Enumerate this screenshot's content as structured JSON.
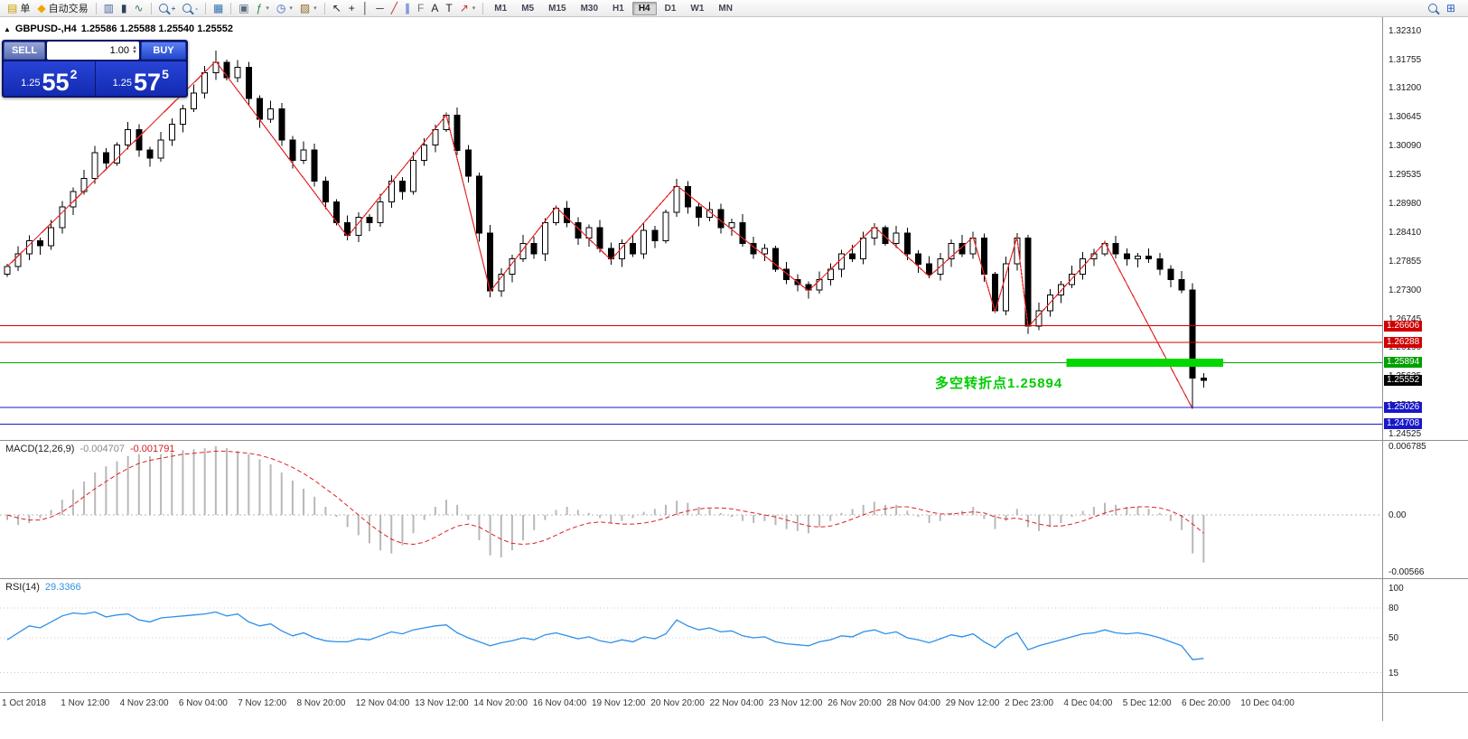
{
  "header": {
    "collapse_icon": "▲",
    "symbol": "GBPUSD-,H4",
    "ohlc": "1.25586 1.25588 1.25540 1.25552"
  },
  "trade_panel": {
    "sell_label": "SELL",
    "buy_label": "BUY",
    "volume": "1.00",
    "sell_price_prefix": "1.25",
    "sell_price_big": "55",
    "sell_price_sup": "2",
    "buy_price_prefix": "1.25",
    "buy_price_big": "57",
    "buy_price_sup": "5"
  },
  "toolbar": {
    "groups": [
      {
        "items": [
          {
            "name": "new-order-button",
            "glyph": "▤",
            "glyph_color": "#c89b00",
            "label": "单"
          },
          {
            "name": "autotrading-button",
            "glyph": "◆",
            "glyph_color": "#f0a500",
            "label": "自动交易"
          }
        ]
      },
      {
        "items": [
          {
            "name": "bar-chart-button",
            "glyph": "▥",
            "glyph_color": "#49679c"
          },
          {
            "name": "candlestick-chart-button",
            "glyph": "▮",
            "glyph_color": "#30405c"
          },
          {
            "name": "line-chart-button",
            "glyph": "∿",
            "glyph_color": "#2f8050"
          }
        ]
      },
      {
        "items": [
          {
            "name": "zoom-in-button",
            "kind": "mag",
            "sign": "+"
          },
          {
            "name": "zoom-out-button",
            "kind": "mag",
            "sign": "-"
          }
        ]
      },
      {
        "items": [
          {
            "name": "tile-windows-button",
            "glyph": "▦",
            "glyph_color": "#2e6fae"
          }
        ]
      },
      {
        "items": [
          {
            "name": "cascade-windows-button",
            "glyph": "▣",
            "glyph_color": "#5a6b7c"
          },
          {
            "name": "indicators-button",
            "glyph": "ƒ",
            "glyph_color": "#1c8a3c",
            "arrow": true
          },
          {
            "name": "periods-button",
            "glyph": "◷",
            "glyph_color": "#2a62c0",
            "arrow": true
          },
          {
            "name": "templates-button",
            "glyph": "▨",
            "glyph_color": "#8a6a2a",
            "arrow": true
          }
        ]
      },
      {
        "items": [
          {
            "name": "cursor-button",
            "glyph": "↖",
            "glyph_color": "#222222"
          },
          {
            "name": "crosshair-button",
            "glyph": "+",
            "glyph_color": "#222222"
          },
          {
            "name": "vertical-line-button",
            "glyph": "│",
            "glyph_color": "#333333"
          },
          {
            "name": "horizontal-line-button",
            "glyph": "─",
            "glyph_color": "#333333"
          },
          {
            "name": "trendline-button",
            "glyph": "╱",
            "glyph_color": "#c03030"
          },
          {
            "name": "equidistant-channel-button",
            "glyph": "∥",
            "glyph_color": "#2a52c0"
          },
          {
            "name": "fibonacci-button",
            "glyph": "F",
            "glyph_color": "#777777"
          },
          {
            "name": "text-button",
            "glyph": "A",
            "glyph_color": "#222222"
          },
          {
            "name": "text-label-button",
            "glyph": "T",
            "glyph_color": "#222222"
          },
          {
            "name": "arrows-button",
            "glyph": "↗",
            "glyph_color": "#c03030",
            "arrow": true
          }
        ]
      }
    ],
    "timeframes": [
      "M1",
      "M5",
      "M15",
      "M30",
      "H1",
      "H4",
      "D1",
      "W1",
      "MN"
    ],
    "active_timeframe": "H4",
    "right_items": [
      {
        "name": "search-button",
        "kind": "mag"
      },
      {
        "name": "new-chart-button",
        "glyph": "⊞",
        "glyph_color": "#2a62c0"
      }
    ]
  },
  "chart_data": {
    "type": "candlestick",
    "symbol": "GBPUSD-",
    "timeframe": "H4",
    "title": "GBPUSD-,H4",
    "current_ohlc": {
      "open": 1.25586,
      "high": 1.25588,
      "low": 1.2554,
      "close": 1.25552
    },
    "current_price": 1.25552,
    "current_price_label": "1.25552",
    "price_top": 1.3257,
    "price_bottom": 1.244,
    "y_axis_ticks": [
      "1.32310",
      "1.31755",
      "1.31200",
      "1.30645",
      "1.30090",
      "1.29535",
      "1.28980",
      "1.28410",
      "1.27855",
      "1.27300",
      "1.26745",
      "1.26190",
      "1.25635",
      "1.25080",
      "1.24525"
    ],
    "x_axis_labels": [
      "1 Oct 2018",
      "1 Nov 12:00",
      "4 Nov 23:00",
      "6 Nov 04:00",
      "7 Nov 12:00",
      "8 Nov 20:00",
      "12 Nov 04:00",
      "13 Nov 12:00",
      "14 Nov 20:00",
      "16 Nov 04:00",
      "19 Nov 12:00",
      "20 Nov 20:00",
      "22 Nov 04:00",
      "23 Nov 12:00",
      "26 Nov 20:00",
      "28 Nov 04:00",
      "29 Nov 12:00",
      "2 Dec 23:00",
      "4 Dec 04:00",
      "5 Dec 12:00",
      "6 Dec 20:00",
      "10 Dec 04:00"
    ],
    "open0": 1.276,
    "closes": [
      1.2775,
      1.28,
      1.2825,
      1.2815,
      1.285,
      1.289,
      1.292,
      1.2945,
      1.2995,
      1.2975,
      1.301,
      1.304,
      1.3,
      1.2985,
      1.302,
      1.305,
      1.308,
      1.311,
      1.315,
      1.317,
      1.314,
      1.316,
      1.31,
      1.306,
      1.308,
      1.302,
      1.298,
      1.3,
      1.294,
      1.29,
      1.286,
      1.2835,
      1.287,
      1.286,
      1.29,
      1.294,
      1.292,
      1.298,
      1.301,
      1.304,
      1.3068,
      1.3,
      1.295,
      1.284,
      1.2728,
      1.276,
      1.279,
      1.282,
      1.28,
      1.286,
      1.2888,
      1.286,
      1.283,
      1.285,
      1.281,
      1.279,
      1.282,
      1.28,
      1.2845,
      1.2825,
      1.288,
      1.293,
      1.289,
      1.287,
      1.2885,
      1.285,
      1.286,
      1.282,
      1.28,
      1.281,
      1.277,
      1.275,
      1.274,
      1.273,
      1.275,
      1.277,
      1.28,
      1.279,
      1.283,
      1.285,
      1.282,
      1.284,
      1.28,
      1.278,
      1.276,
      1.279,
      1.282,
      1.28,
      1.283,
      1.276,
      1.269,
      1.278,
      1.283,
      1.266,
      1.269,
      1.272,
      1.274,
      1.276,
      1.279,
      1.28,
      1.282,
      1.28,
      1.279,
      1.2795,
      1.279,
      1.277,
      1.275,
      1.273,
      1.256,
      1.2555
    ],
    "wick_overrides": {
      "19": {
        "high": 1.3192
      },
      "44": {
        "low": 1.2716
      },
      "93": {
        "low": 1.2645
      },
      "108": {
        "low": 1.25
      }
    },
    "zigzag": [
      [
        0,
        1.2775
      ],
      [
        19,
        1.3172
      ],
      [
        31,
        1.2833
      ],
      [
        40,
        1.3068
      ],
      [
        44,
        1.2727
      ],
      [
        50,
        1.289
      ],
      [
        55,
        1.2788
      ],
      [
        61,
        1.2932
      ],
      [
        73,
        1.2728
      ],
      [
        79,
        1.2852
      ],
      [
        84,
        1.2756
      ],
      [
        88,
        1.2832
      ],
      [
        90,
        1.2688
      ],
      [
        92,
        1.2832
      ],
      [
        93,
        1.2658
      ],
      [
        100,
        1.2822
      ],
      [
        108,
        1.25
      ]
    ],
    "horizontal_lines": [
      {
        "price": 1.26606,
        "label": "1.26606",
        "color": "#d00000"
      },
      {
        "price": 1.26288,
        "label": "1.26288",
        "color": "#d00000"
      },
      {
        "price": 1.25894,
        "label": "1.25894",
        "color": "#00a000"
      },
      {
        "price": 1.25026,
        "label": "1.25026",
        "color": "#1818c8"
      },
      {
        "price": 1.24708,
        "label": "1.24708",
        "color": "#1818c8"
      }
    ],
    "highlight_box": {
      "price": 1.25894,
      "from_index": 96.5,
      "to_index": 110.8,
      "color": "#00d800",
      "thickness_px": 9
    },
    "annotation": {
      "text": "多空转折点1.25894",
      "color": "#00cc00"
    },
    "macd": {
      "label": "MACD(12,26,9)",
      "value_main": "-0.004707",
      "value_signal": "-0.001791",
      "axis": [
        {
          "v": 0.006785,
          "label": "0.006785"
        },
        {
          "v": 0,
          "label": "0.00"
        },
        {
          "v": -0.00566,
          "label": "-0.00566"
        }
      ],
      "hist": [
        -0.0005,
        -0.001,
        -0.0008,
        -0.0003,
        0.0005,
        0.0015,
        0.0025,
        0.0033,
        0.0042,
        0.0048,
        0.0053,
        0.0058,
        0.006,
        0.0058,
        0.006,
        0.0062,
        0.0064,
        0.0065,
        0.0066,
        0.0068,
        0.0066,
        0.0063,
        0.006,
        0.0055,
        0.005,
        0.0042,
        0.0034,
        0.0026,
        0.0018,
        0.0008,
        -0.0002,
        -0.0012,
        -0.002,
        -0.0028,
        -0.0035,
        -0.0038,
        -0.003,
        -0.0018,
        -0.0005,
        0.0008,
        0.0015,
        0.001,
        -0.0005,
        -0.0025,
        -0.004,
        -0.0042,
        -0.0035,
        -0.0025,
        -0.0015,
        -0.0005,
        0.0005,
        0.0008,
        0.0005,
        0.0002,
        -0.0003,
        -0.0008,
        -0.0006,
        -0.0003,
        0.0003,
        0.0006,
        0.001,
        0.0014,
        0.0012,
        0.0008,
        0.0006,
        0.0002,
        -0.0002,
        -0.0006,
        -0.0008,
        -0.0006,
        -0.001,
        -0.0014,
        -0.0016,
        -0.0018,
        -0.0012,
        -0.0006,
        0.0002,
        0.0006,
        0.001,
        0.0013,
        0.001,
        0.001,
        0.0004,
        -0.0002,
        -0.0008,
        -0.0006,
        0.0002,
        0.0004,
        0.0008,
        -0.0004,
        -0.0014,
        -0.0006,
        0.0006,
        -0.0012,
        -0.0016,
        -0.0012,
        -0.0008,
        -0.0002,
        0.0004,
        0.0008,
        0.0012,
        0.001,
        0.0008,
        0.0008,
        0.0006,
        0.0002,
        -0.0006,
        -0.0015,
        -0.0038,
        -0.0047
      ],
      "signal": [
        0.0,
        -0.0003,
        -0.0005,
        -0.0005,
        -0.0002,
        0.0003,
        0.001,
        0.0018,
        0.0026,
        0.0033,
        0.004,
        0.0046,
        0.0051,
        0.0054,
        0.0056,
        0.0058,
        0.006,
        0.0061,
        0.0062,
        0.0063,
        0.0063,
        0.0062,
        0.0061,
        0.0059,
        0.0056,
        0.0052,
        0.0047,
        0.0041,
        0.0034,
        0.0026,
        0.0018,
        0.0009,
        0.0,
        -0.0009,
        -0.0017,
        -0.0024,
        -0.0028,
        -0.0029,
        -0.0027,
        -0.0022,
        -0.0016,
        -0.0011,
        -0.0009,
        -0.0012,
        -0.0018,
        -0.0024,
        -0.0028,
        -0.0029,
        -0.0028,
        -0.0025,
        -0.002,
        -0.0015,
        -0.0011,
        -0.0008,
        -0.0007,
        -0.0008,
        -0.0009,
        -0.0009,
        -0.0008,
        -0.0006,
        -0.0003,
        0.0001,
        0.0004,
        0.0006,
        0.0007,
        0.0007,
        0.0006,
        0.0004,
        0.0002,
        0.0,
        -0.0002,
        -0.0005,
        -0.0008,
        -0.0011,
        -0.0012,
        -0.0011,
        -0.0008,
        -0.0004,
        0.0,
        0.0004,
        0.0006,
        0.0008,
        0.0008,
        0.0006,
        0.0003,
        0.0001,
        0.0001,
        0.0002,
        0.0003,
        0.0002,
        -0.0002,
        -0.0004,
        -0.0003,
        -0.0006,
        -0.0009,
        -0.0011,
        -0.0011,
        -0.0009,
        -0.0006,
        -0.0002,
        0.0002,
        0.0005,
        0.0007,
        0.0008,
        0.0008,
        0.0007,
        0.0004,
        -0.0001,
        -0.0009,
        -0.0018
      ]
    },
    "rsi": {
      "label": "RSI(14)",
      "value": "29.3366",
      "levels": [
        80,
        50,
        15
      ],
      "axis": [
        {
          "v": 100,
          "label": "100"
        },
        {
          "v": 80,
          "label": "80"
        },
        {
          "v": 50,
          "label": "50"
        },
        {
          "v": 15,
          "label": "15"
        }
      ],
      "values": [
        48,
        55,
        62,
        60,
        66,
        72,
        75,
        74,
        76,
        71,
        73,
        74,
        68,
        66,
        70,
        71,
        72,
        73,
        74,
        76,
        72,
        74,
        66,
        62,
        64,
        57,
        52,
        55,
        50,
        47,
        46,
        46,
        49,
        48,
        52,
        56,
        54,
        58,
        60,
        62,
        63,
        55,
        50,
        46,
        42,
        45,
        47,
        50,
        48,
        53,
        55,
        52,
        49,
        51,
        47,
        45,
        48,
        46,
        51,
        49,
        54,
        68,
        62,
        58,
        60,
        56,
        57,
        52,
        50,
        51,
        46,
        44,
        43,
        42,
        46,
        48,
        52,
        51,
        56,
        58,
        54,
        56,
        50,
        48,
        45,
        49,
        53,
        51,
        54,
        46,
        40,
        50,
        55,
        38,
        42,
        45,
        48,
        51,
        54,
        55,
        58,
        55,
        54,
        55,
        53,
        50,
        46,
        42,
        28,
        29.3
      ]
    }
  }
}
